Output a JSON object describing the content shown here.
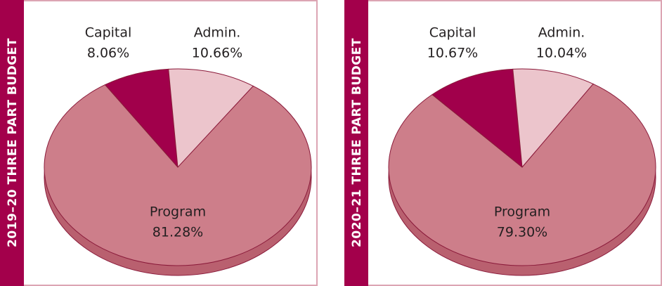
{
  "chart_data": [
    {
      "type": "pie",
      "title": "2019–20 THREE PART BUDGET",
      "categories": [
        "Capital",
        "Admin.",
        "Program"
      ],
      "values": [
        8.06,
        10.66,
        81.28
      ],
      "value_labels": [
        "8.06%",
        "10.66%",
        "81.28%"
      ],
      "colors": [
        "#a1004b",
        "#ecc5cc",
        "#cd7e8a"
      ]
    },
    {
      "type": "pie",
      "title": "2020–21 THREE PART BUDGET",
      "categories": [
        "Capital",
        "Admin.",
        "Program"
      ],
      "values": [
        10.67,
        10.04,
        79.3
      ],
      "value_labels": [
        "10.67%",
        "10.04%",
        "79.30%"
      ],
      "colors": [
        "#a1004b",
        "#ecc5cc",
        "#cd7e8a"
      ]
    }
  ]
}
